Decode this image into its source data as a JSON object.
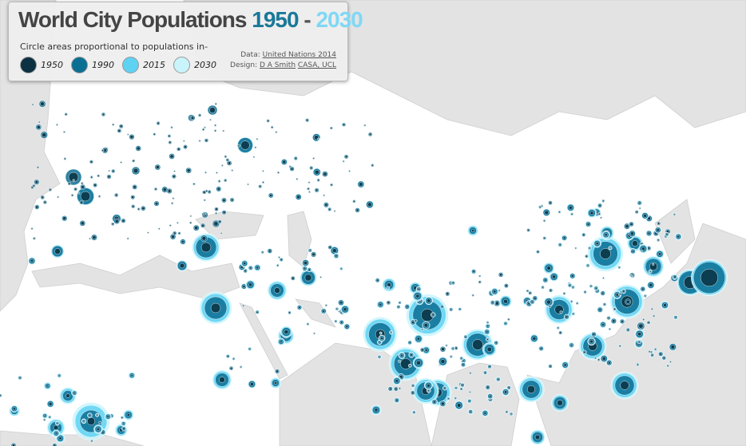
{
  "header": {
    "title": "World City Populations",
    "start": "1950",
    "dash": "-",
    "end": "2030",
    "subtitle": "Circle areas proportional to populations in-"
  },
  "legend": [
    {
      "label": "1950",
      "color": "#0b3142"
    },
    {
      "label": "1990",
      "color": "#0a6f93"
    },
    {
      "label": "2015",
      "color": "#5fd2f3"
    },
    {
      "label": "2030",
      "color": "#c9f4fb"
    }
  ],
  "credits": {
    "data_label": "Data:",
    "data_link": "United Nations 2014",
    "design_label": "Design:",
    "designer": "D A Smith",
    "org": "CASA, UCL"
  }
}
